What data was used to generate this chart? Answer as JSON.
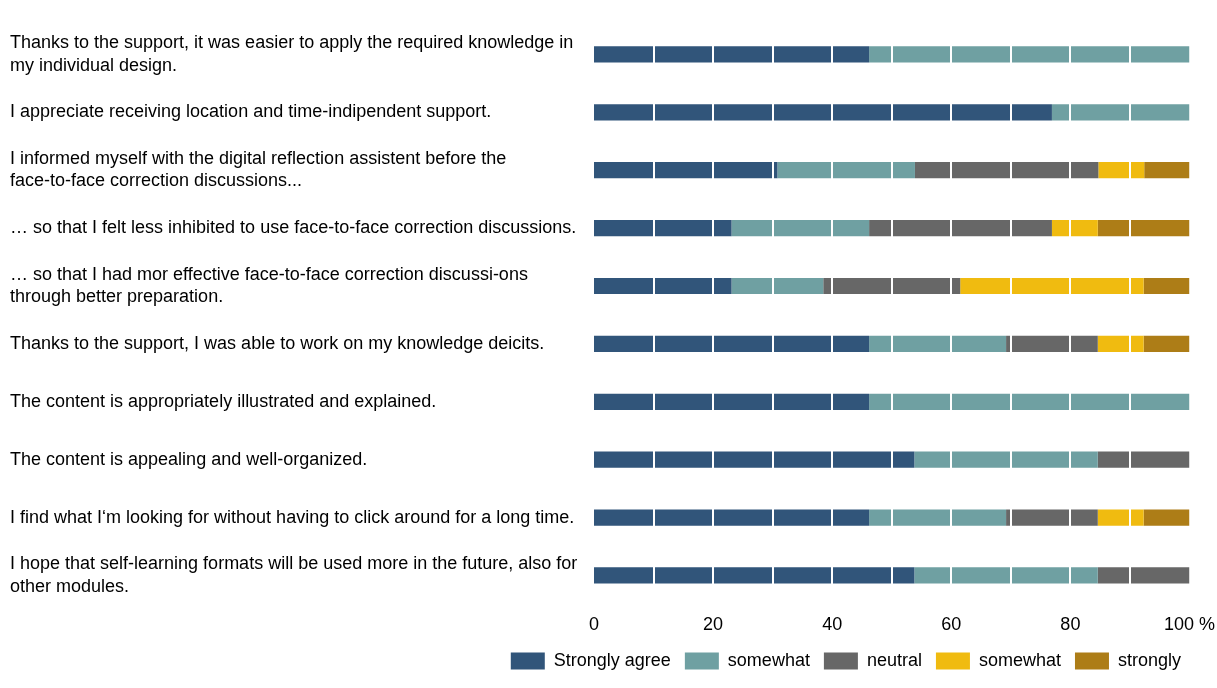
{
  "chart_data": {
    "type": "bar",
    "orientation": "horizontal",
    "stacked": true,
    "categories": [
      "Thanks to the support, it was easier to apply the required knowledge in my individual design.",
      "I appreciate receiving location and time-indipendent support.",
      "I informed myself with the digital reflection assistent before the face-to-face correction discussions...",
      "… so that I felt less inhibited to use face-to-face correction discussions.",
      "… so that I had mor effective face-to-face correction discussi-ons through better preparation.",
      "Thanks to the support, I was able to work on my knowledge deicits.",
      "The content is appropriately illustrated and explained.",
      "The content is appealing and well-organized.",
      "I find what I‘m looking for without having to click around for a long time.",
      "I hope that self-learning formats will be used more in the future, also for other modules."
    ],
    "series": [
      {
        "name": "Strongly agree",
        "color": "#31557a",
        "values": [
          46.2,
          76.9,
          30.8,
          23.1,
          23.1,
          46.2,
          46.2,
          53.8,
          46.2,
          53.8
        ]
      },
      {
        "name": "somewhat",
        "color": "#6fa0a2",
        "values": [
          53.8,
          23.1,
          23.1,
          23.1,
          15.4,
          23.0,
          53.8,
          30.8,
          23.0,
          30.8
        ]
      },
      {
        "name": "neutral",
        "color": "#676767",
        "values": [
          0,
          0,
          30.8,
          30.7,
          23.0,
          15.4,
          0,
          15.4,
          15.4,
          15.4
        ]
      },
      {
        "name": "somewhat",
        "color": "#f0bb10",
        "values": [
          0,
          0,
          7.7,
          7.7,
          30.8,
          7.7,
          0,
          0,
          7.7,
          0
        ]
      },
      {
        "name": "strongly",
        "color": "#ad7d17",
        "values": [
          0,
          0,
          7.6,
          15.4,
          7.7,
          7.7,
          0,
          0,
          7.7,
          0
        ]
      }
    ],
    "xlim": [
      0,
      100
    ],
    "xticks": [
      0,
      {
        "value": 10,
        "label": null
      },
      20,
      {
        "value": 30,
        "label": null
      },
      40,
      {
        "value": 50,
        "label": null
      },
      60,
      {
        "value": 70,
        "label": null
      },
      80,
      {
        "value": 90,
        "label": null
      },
      {
        "value": 100,
        "label": "100 %"
      }
    ],
    "grid": "x",
    "legend": "bottom"
  }
}
